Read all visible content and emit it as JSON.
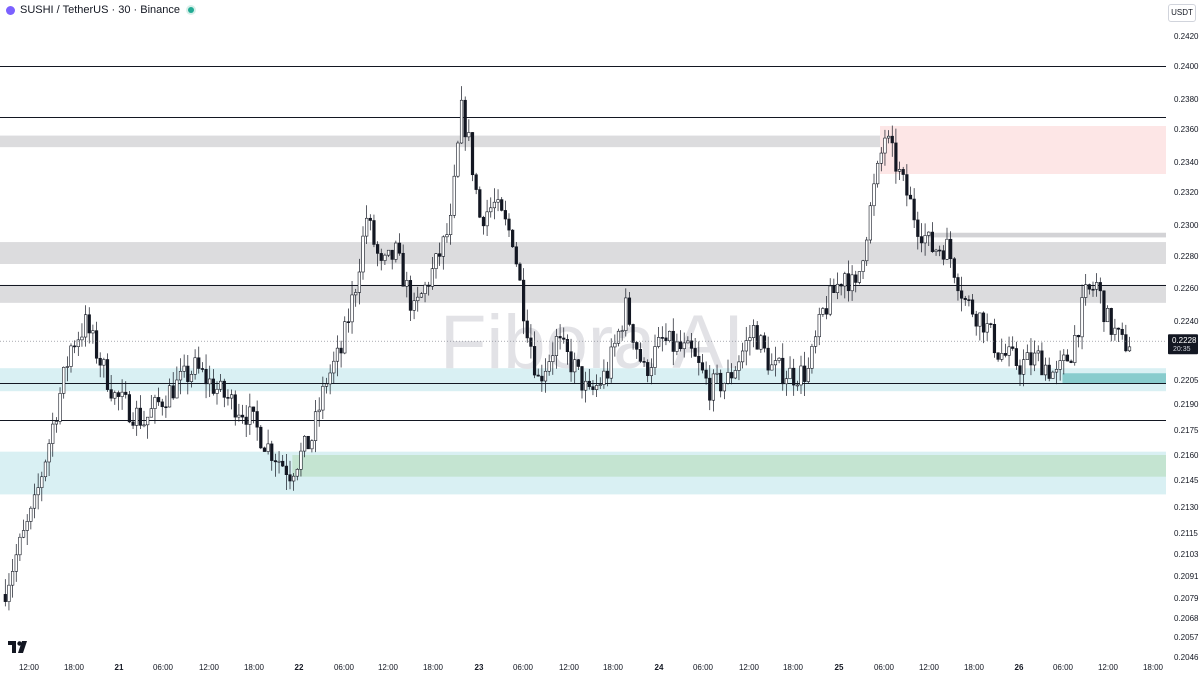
{
  "header": {
    "symbol": "SUSHI / TetherUS · 30 · Binance"
  },
  "currency_button": "USDT",
  "watermark": "Fibora AI",
  "logo_icon": "tradingview-logo",
  "colors": {
    "up_body": "#ffffff",
    "down_body": "#131722",
    "wick": "#131722",
    "zone_grey": "#d3d3d6",
    "zone_cyan": "#d9f0f3",
    "zone_teal": "#88cccd",
    "zone_green": "#c4e4d1",
    "zone_red": "#fde6e6",
    "line": "#131722"
  },
  "chart_data": {
    "type": "candlestick",
    "price_axis": {
      "ticks": [
        "0.2420",
        "0.2400",
        "0.2380",
        "0.2360",
        "0.2340",
        "0.2320",
        "0.2300",
        "0.2280",
        "0.2260",
        "0.2240",
        "0.2205",
        "0.2190",
        "0.2175",
        "0.2160",
        "0.2145",
        "0.2130",
        "0.2115",
        "0.2103",
        "0.2091",
        "0.2079",
        "0.2068",
        "0.2057",
        "0.2046"
      ],
      "last_price": "0.2228",
      "countdown": "20:35"
    },
    "time_axis": {
      "ticks": [
        "12:00",
        "18:00",
        "21",
        "06:00",
        "12:00",
        "18:00",
        "22",
        "06:00",
        "12:00",
        "18:00",
        "23",
        "06:00",
        "12:00",
        "18:00",
        "24",
        "06:00",
        "12:00",
        "18:00",
        "25",
        "06:00",
        "12:00",
        "18:00",
        "26",
        "06:00",
        "12:00",
        "18:00"
      ],
      "bold": [
        "21",
        "22",
        "23",
        "24",
        "25",
        "26"
      ]
    },
    "horizontal_lines": [
      0.24,
      0.2368,
      0.2262,
      0.2203,
      0.2181
    ],
    "zones": [
      {
        "type": "grey",
        "from_price": 0.2356,
        "to_price": 0.2349,
        "from_bar": 0
      },
      {
        "type": "grey",
        "from_price": 0.2289,
        "to_price": 0.2275,
        "from_bar": 0
      },
      {
        "type": "grey",
        "from_price": 0.2262,
        "to_price": 0.2251,
        "from_bar": 0
      },
      {
        "type": "cyan",
        "from_price": 0.2212,
        "to_price": 0.2198,
        "from_bar": 0
      },
      {
        "type": "teal",
        "from_price": 0.2209,
        "to_price": 0.2203,
        "from_bar": 290
      },
      {
        "type": "cyan",
        "from_price": 0.2162,
        "to_price": 0.2137,
        "from_bar": 0
      },
      {
        "type": "green",
        "from_price": 0.216,
        "to_price": 0.2147,
        "from_bar": 79
      },
      {
        "type": "red",
        "from_price": 0.2362,
        "to_price": 0.2332,
        "from_bar": 240
      },
      {
        "type": "grey_thin",
        "from_price": 0.2295,
        "to_price": 0.2292,
        "from_bar": 253
      }
    ],
    "key_points": [
      {
        "bar": 0,
        "price": 0.2085
      },
      {
        "bar": 8,
        "price": 0.213
      },
      {
        "bar": 18,
        "price": 0.2225
      },
      {
        "bar": 22,
        "price": 0.2238
      },
      {
        "bar": 30,
        "price": 0.2195
      },
      {
        "bar": 38,
        "price": 0.218
      },
      {
        "bar": 45,
        "price": 0.2198
      },
      {
        "bar": 52,
        "price": 0.2212
      },
      {
        "bar": 60,
        "price": 0.2195
      },
      {
        "bar": 66,
        "price": 0.2185
      },
      {
        "bar": 72,
        "price": 0.2165
      },
      {
        "bar": 78,
        "price": 0.215
      },
      {
        "bar": 84,
        "price": 0.217
      },
      {
        "bar": 88,
        "price": 0.2205
      },
      {
        "bar": 92,
        "price": 0.2222
      },
      {
        "bar": 96,
        "price": 0.2262
      },
      {
        "bar": 99,
        "price": 0.2305
      },
      {
        "bar": 103,
        "price": 0.2272
      },
      {
        "bar": 107,
        "price": 0.2282
      },
      {
        "bar": 112,
        "price": 0.2245
      },
      {
        "bar": 118,
        "price": 0.2275
      },
      {
        "bar": 122,
        "price": 0.23
      },
      {
        "bar": 125,
        "price": 0.2372
      },
      {
        "bar": 127,
        "price": 0.2352
      },
      {
        "bar": 130,
        "price": 0.2305
      },
      {
        "bar": 134,
        "price": 0.2312
      },
      {
        "bar": 139,
        "price": 0.2292
      },
      {
        "bar": 142,
        "price": 0.2248
      },
      {
        "bar": 146,
        "price": 0.2205
      },
      {
        "bar": 151,
        "price": 0.2228
      },
      {
        "bar": 156,
        "price": 0.2212
      },
      {
        "bar": 160,
        "price": 0.2195
      },
      {
        "bar": 165,
        "price": 0.221
      },
      {
        "bar": 170,
        "price": 0.2248
      },
      {
        "bar": 175,
        "price": 0.221
      },
      {
        "bar": 180,
        "price": 0.2228
      },
      {
        "bar": 188,
        "price": 0.222
      },
      {
        "bar": 193,
        "price": 0.22
      },
      {
        "bar": 198,
        "price": 0.2205
      },
      {
        "bar": 205,
        "price": 0.2235
      },
      {
        "bar": 210,
        "price": 0.2212
      },
      {
        "bar": 216,
        "price": 0.2208
      },
      {
        "bar": 220,
        "price": 0.221
      },
      {
        "bar": 224,
        "price": 0.2245
      },
      {
        "bar": 230,
        "price": 0.227
      },
      {
        "bar": 233,
        "price": 0.2258
      },
      {
        "bar": 238,
        "price": 0.2322
      },
      {
        "bar": 241,
        "price": 0.2356
      },
      {
        "bar": 244,
        "price": 0.2338
      },
      {
        "bar": 250,
        "price": 0.23
      },
      {
        "bar": 254,
        "price": 0.2285
      },
      {
        "bar": 258,
        "price": 0.2286
      },
      {
        "bar": 263,
        "price": 0.2252
      },
      {
        "bar": 268,
        "price": 0.224
      },
      {
        "bar": 272,
        "price": 0.2222
      },
      {
        "bar": 278,
        "price": 0.2214
      },
      {
        "bar": 283,
        "price": 0.2218
      },
      {
        "bar": 288,
        "price": 0.2207
      },
      {
        "bar": 292,
        "price": 0.2222
      },
      {
        "bar": 296,
        "price": 0.2255
      },
      {
        "bar": 299,
        "price": 0.2262
      },
      {
        "bar": 302,
        "price": 0.224
      },
      {
        "bar": 306,
        "price": 0.2226
      },
      {
        "bar": 308,
        "price": 0.2228
      }
    ]
  }
}
